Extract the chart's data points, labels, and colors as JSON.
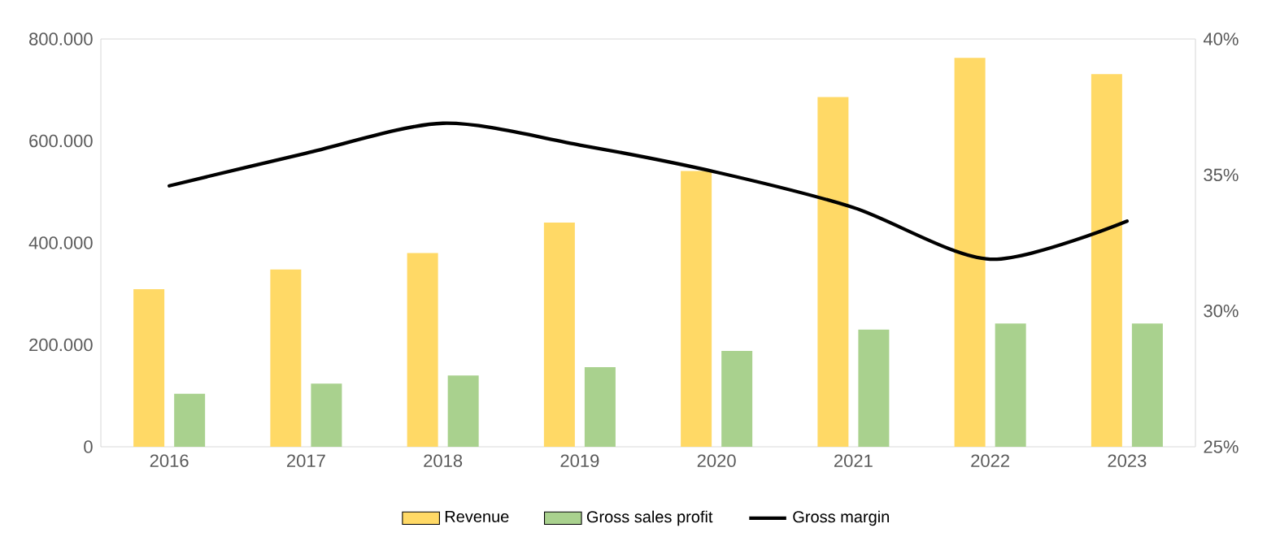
{
  "chart_data": {
    "type": "bar",
    "categories": [
      "2016",
      "2017",
      "2018",
      "2019",
      "2020",
      "2021",
      "2022",
      "2023"
    ],
    "series": [
      {
        "name": "Revenue",
        "color": "#ffd966",
        "values": [
          309000,
          348000,
          380000,
          440000,
          541000,
          686000,
          763000,
          731000
        ]
      },
      {
        "name": "Gross sales profit",
        "color": "#a9d18e",
        "values": [
          104000,
          124000,
          140000,
          156000,
          188000,
          230000,
          242000,
          242000
        ]
      },
      {
        "name": "Gross margin",
        "color": "#000000",
        "type": "line",
        "axis": "y2",
        "values": [
          34.6,
          35.8,
          36.9,
          36.1,
          35.1,
          33.8,
          31.9,
          33.3
        ]
      }
    ],
    "ylim": [
      0,
      800000
    ],
    "yticks": [
      0,
      {
        "value": 200000,
        "label": "200.000"
      },
      {
        "value": 400000,
        "label": "400.000"
      },
      {
        "value": 600000,
        "label": "600.000"
      },
      {
        "value": 800000,
        "label": "800.000"
      }
    ],
    "y2lim": [
      25,
      40
    ],
    "y2ticks": [
      {
        "value": 25,
        "label": "25%"
      },
      {
        "value": 30,
        "label": "30%"
      },
      {
        "value": 35,
        "label": "35%"
      },
      {
        "value": 40,
        "label": "40%"
      }
    ],
    "legend": "bottom"
  }
}
